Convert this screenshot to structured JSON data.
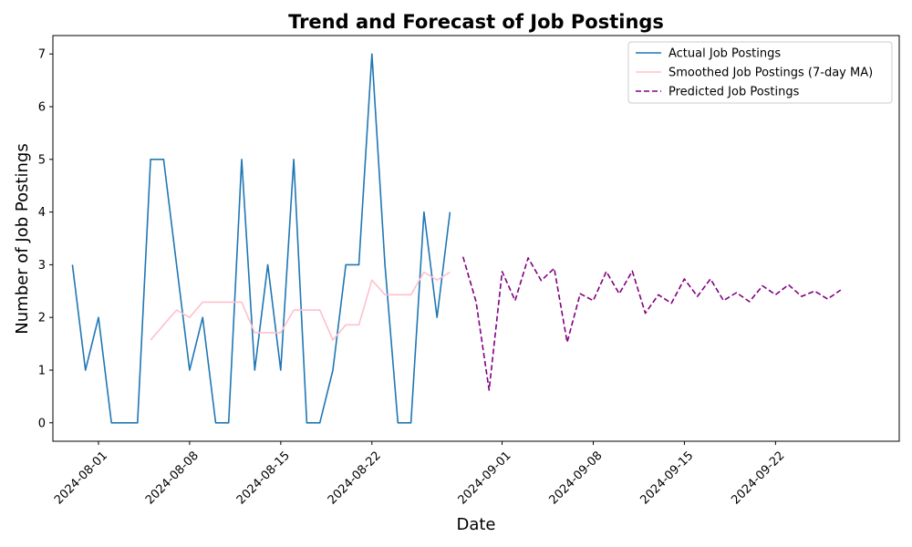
{
  "chart_data": {
    "type": "line",
    "title": "Trend and Forecast of Job Postings",
    "xlabel": "Date",
    "ylabel": "Number of Job Postings",
    "ylim": [
      -0.35,
      7.35
    ],
    "xlim": [
      "2024-07-28T12:00",
      "2024-10-01T12:00"
    ],
    "yticks": [
      0,
      1,
      2,
      3,
      4,
      5,
      6,
      7
    ],
    "xticks": [
      "2024-08-01",
      "2024-08-08",
      "2024-08-15",
      "2024-08-22",
      "2024-09-01",
      "2024-09-08",
      "2024-09-15",
      "2024-09-22"
    ],
    "grid": false,
    "legend_position": "top-right",
    "series": [
      {
        "name": "Actual Job Postings",
        "color": "#1f77b4",
        "style": "solid",
        "x": [
          "2024-07-30",
          "2024-07-31",
          "2024-08-01",
          "2024-08-02",
          "2024-08-03",
          "2024-08-04",
          "2024-08-05",
          "2024-08-06",
          "2024-08-07",
          "2024-08-08",
          "2024-08-09",
          "2024-08-10",
          "2024-08-11",
          "2024-08-12",
          "2024-08-13",
          "2024-08-14",
          "2024-08-15",
          "2024-08-16",
          "2024-08-17",
          "2024-08-18",
          "2024-08-19",
          "2024-08-20",
          "2024-08-21",
          "2024-08-22",
          "2024-08-23",
          "2024-08-24",
          "2024-08-25",
          "2024-08-26",
          "2024-08-27",
          "2024-08-28"
        ],
        "values": [
          3,
          1,
          2,
          0,
          0,
          0,
          5,
          5,
          3,
          1,
          2,
          0,
          0,
          5,
          1,
          3,
          1,
          5,
          0,
          0,
          1,
          3,
          3,
          7,
          3,
          0,
          0,
          4,
          2,
          4
        ]
      },
      {
        "name": "Smoothed Job Postings (7-day MA)",
        "color": "#ffc0cb",
        "style": "solid",
        "x": [
          "2024-08-05",
          "2024-08-06",
          "2024-08-07",
          "2024-08-08",
          "2024-08-09",
          "2024-08-10",
          "2024-08-11",
          "2024-08-12",
          "2024-08-13",
          "2024-08-14",
          "2024-08-15",
          "2024-08-16",
          "2024-08-17",
          "2024-08-18",
          "2024-08-19",
          "2024-08-20",
          "2024-08-21",
          "2024-08-22",
          "2024-08-23",
          "2024-08-24",
          "2024-08-25",
          "2024-08-26",
          "2024-08-27",
          "2024-08-28"
        ],
        "values": [
          1.57,
          1.86,
          2.14,
          2.0,
          2.29,
          2.29,
          2.29,
          2.29,
          1.71,
          1.71,
          1.71,
          2.14,
          2.14,
          2.14,
          1.57,
          1.86,
          1.86,
          2.71,
          2.43,
          2.43,
          2.43,
          2.86,
          2.71,
          2.86
        ]
      },
      {
        "name": "Predicted Job Postings",
        "color": "#800080",
        "style": "dashed",
        "x": [
          "2024-08-29",
          "2024-08-30",
          "2024-08-31",
          "2024-09-01",
          "2024-09-02",
          "2024-09-03",
          "2024-09-04",
          "2024-09-05",
          "2024-09-06",
          "2024-09-07",
          "2024-09-08",
          "2024-09-09",
          "2024-09-10",
          "2024-09-11",
          "2024-09-12",
          "2024-09-13",
          "2024-09-14",
          "2024-09-15",
          "2024-09-16",
          "2024-09-17",
          "2024-09-18",
          "2024-09-19",
          "2024-09-20",
          "2024-09-21",
          "2024-09-22",
          "2024-09-23",
          "2024-09-24",
          "2024-09-25",
          "2024-09-26",
          "2024-09-27"
        ],
        "values": [
          3.15,
          2.3,
          0.62,
          2.87,
          2.32,
          3.13,
          2.7,
          2.93,
          1.53,
          2.45,
          2.32,
          2.87,
          2.45,
          2.88,
          2.08,
          2.43,
          2.27,
          2.73,
          2.4,
          2.73,
          2.32,
          2.47,
          2.3,
          2.6,
          2.43,
          2.62,
          2.4,
          2.5,
          2.35,
          2.52
        ]
      }
    ]
  }
}
